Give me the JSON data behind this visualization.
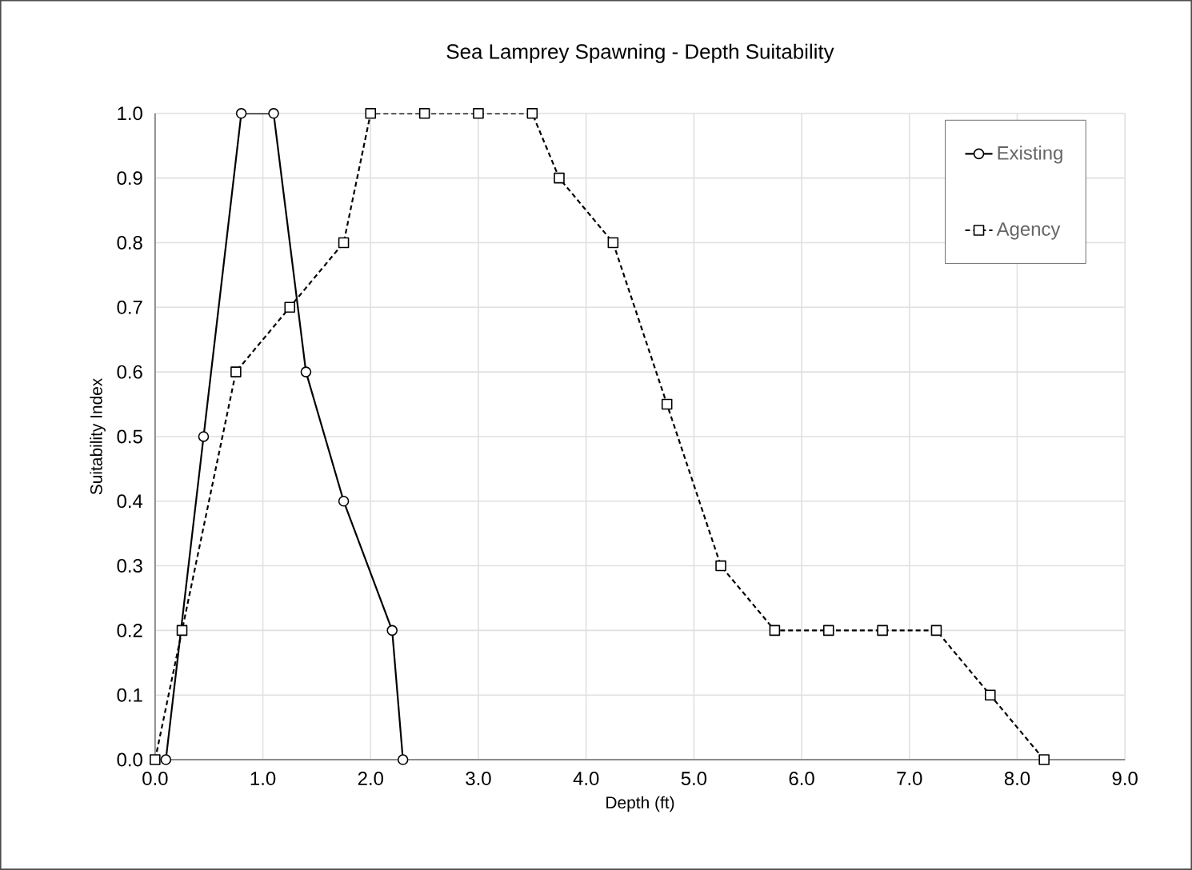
{
  "chart_data": {
    "type": "line",
    "title": "Sea Lamprey Spawning - Depth Suitability",
    "xlabel": "Depth (ft)",
    "ylabel": "Suitability Index",
    "xlim": [
      0,
      9
    ],
    "ylim": [
      0,
      1
    ],
    "xticks": [
      {
        "value": 0,
        "label": "0.0"
      },
      {
        "value": 1,
        "label": "1.0"
      },
      {
        "value": 2,
        "label": "2.0"
      },
      {
        "value": 3,
        "label": "3.0"
      },
      {
        "value": 4,
        "label": "4.0"
      },
      {
        "value": 5,
        "label": "5.0"
      },
      {
        "value": 6,
        "label": "6.0"
      },
      {
        "value": 7,
        "label": "7.0"
      },
      {
        "value": 8,
        "label": "8.0"
      },
      {
        "value": 9,
        "label": "9.0"
      }
    ],
    "yticks": [
      {
        "value": 0,
        "label": "0.0"
      },
      {
        "value": 0.1,
        "label": "0.1"
      },
      {
        "value": 0.2,
        "label": "0.2"
      },
      {
        "value": 0.3,
        "label": "0.3"
      },
      {
        "value": 0.4,
        "label": "0.4"
      },
      {
        "value": 0.5,
        "label": "0.5"
      },
      {
        "value": 0.6,
        "label": "0.6"
      },
      {
        "value": 0.7,
        "label": "0.7"
      },
      {
        "value": 0.8,
        "label": "0.8"
      },
      {
        "value": 0.9,
        "label": "0.9"
      },
      {
        "value": 1,
        "label": "1.0"
      }
    ],
    "grid": true,
    "legend": "top right",
    "series": [
      {
        "name": "Existing",
        "color": "#000000",
        "marker": "circle",
        "line_style": "solid",
        "x": [
          0.1,
          0.45,
          0.8,
          1.1,
          1.4,
          1.75,
          2.2,
          2.3
        ],
        "values": [
          0,
          0.5,
          1,
          1,
          0.6,
          0.4,
          0.2,
          0
        ]
      },
      {
        "name": "Agency",
        "color": "#000000",
        "marker": "square",
        "line_style": "dashed",
        "x": [
          0,
          0.25,
          0.75,
          1.25,
          1.75,
          2.0,
          2.5,
          3.0,
          3.5,
          3.75,
          4.25,
          4.75,
          5.25,
          5.75,
          6.25,
          6.75,
          7.25,
          7.75,
          8.25
        ],
        "values": [
          0,
          0.2,
          0.6,
          0.7,
          0.8,
          1,
          1,
          1,
          1,
          0.9,
          0.8,
          0.55,
          0.3,
          0.2,
          0.2,
          0.2,
          0.2,
          0.1,
          0
        ]
      }
    ]
  }
}
